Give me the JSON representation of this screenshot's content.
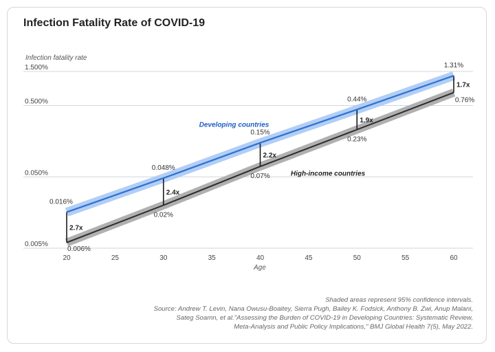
{
  "title": "Infection Fatality Rate of COVID-19",
  "colors": {
    "developing": "#2f6fd6",
    "developing_band": "#a9c9f3",
    "high_income": "#2b2b2b",
    "high_income_band": "#b0b0b0",
    "developing_label": "#1f5fc4",
    "grid": "#cfd6de"
  },
  "chart_data": {
    "type": "line",
    "title": "Infection Fatality Rate of COVID-19",
    "ylabel": "Infection fatality rate",
    "xlabel": "Age",
    "y_scale": "log",
    "ylim": [
      0.005,
      1.5
    ],
    "xlim": [
      20,
      60
    ],
    "x_ticks": [
      20,
      25,
      30,
      35,
      40,
      45,
      50,
      55,
      60
    ],
    "y_ticks": [
      {
        "value": 0.005,
        "label": "0.005%"
      },
      {
        "value": 0.05,
        "label": "0.050%"
      },
      {
        "value": 0.5,
        "label": "0.500%"
      },
      {
        "value": 1.5,
        "label": "1.500%"
      }
    ],
    "x": [
      20,
      30,
      40,
      50,
      60
    ],
    "series": [
      {
        "name": "Developing countries",
        "values": [
          0.016,
          0.048,
          0.15,
          0.44,
          1.31
        ],
        "labels": [
          "0.016%",
          "0.048%",
          "0.15%",
          "0.44%",
          "1.31%"
        ]
      },
      {
        "name": "High-income countries",
        "values": [
          0.006,
          0.02,
          0.07,
          0.23,
          0.76
        ],
        "labels": [
          "0.006%",
          "0.02%",
          "0.07%",
          "0.23%",
          "0.76%"
        ]
      }
    ],
    "ratios": [
      "2.7x",
      "2.4x",
      "2.2x",
      "1.9x",
      "1.7x"
    ],
    "grid": "horizontal"
  },
  "notes": {
    "line1": "Shaded areas represent 95% confidence intervals.",
    "line2": "Source: Andrew T. Levin, Nana Owusu-Boaitey, Sierra Pugh, Bailey K. Fodsick, Anthony B. Zwi, Anup Malani,",
    "line3": "Sateg Soamn, et al.\"Assessing the Burden of COVID-19 in Developing Countries: Systematic Review,",
    "line4": "Meta-Analysis and Public Policy Implications,\" BMJ Global Health 7(5), May 2022."
  }
}
